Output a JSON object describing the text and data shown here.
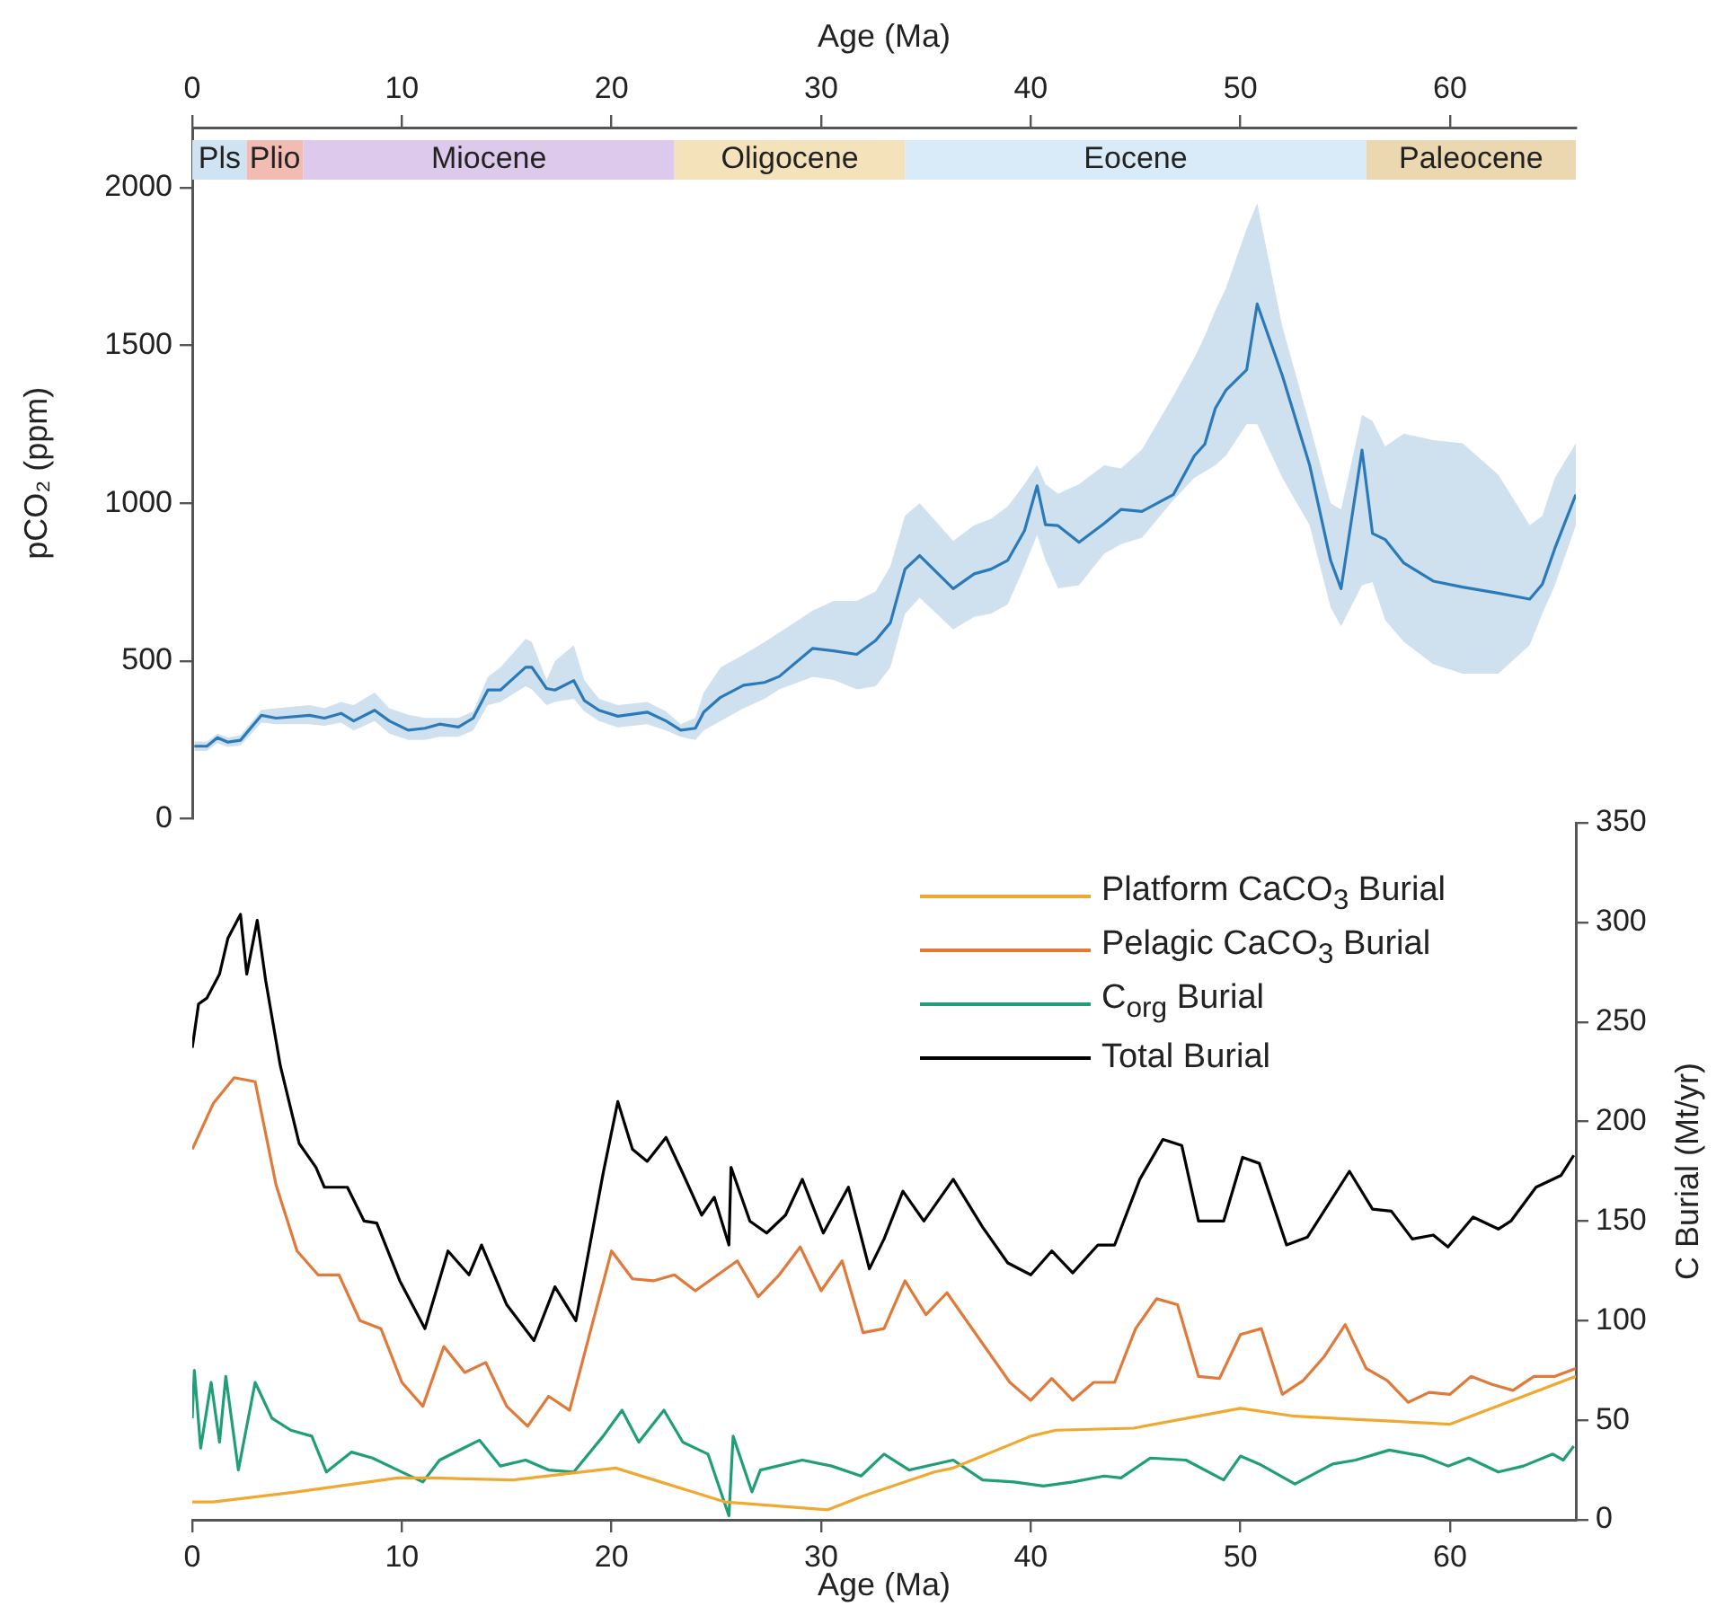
{
  "chart_data": [
    {
      "type": "line",
      "xlabel": "Age (Ma)",
      "ylabel": "pCO₂ (ppm)",
      "xlim": [
        0,
        66
      ],
      "xticks": [
        0,
        10,
        20,
        30,
        40,
        50,
        60
      ],
      "ylim": [
        0,
        2190
      ],
      "yticks": [
        0,
        500,
        1000,
        1500,
        2000
      ],
      "grid": false,
      "legend": false,
      "marker": "none",
      "line_style": "solid",
      "bands": [
        {
          "axis": "x",
          "from": 0,
          "to": 2.6,
          "label": "Pls",
          "color": "#cfe3f3"
        },
        {
          "axis": "x",
          "from": 2.6,
          "to": 5.3,
          "label": "Plio",
          "color": "#f3bcb3"
        },
        {
          "axis": "x",
          "from": 5.3,
          "to": 23,
          "label": "Miocene",
          "color": "#dcc9ec"
        },
        {
          "axis": "x",
          "from": 23,
          "to": 34,
          "label": "Oligocene",
          "color": "#f4e2bb"
        },
        {
          "axis": "x",
          "from": 34,
          "to": 56,
          "label": "Eocene",
          "color": "#d9ebf8"
        },
        {
          "axis": "x",
          "from": 56,
          "to": 66,
          "label": "Paleocene",
          "color": "#ecd8b0"
        }
      ],
      "series": [
        {
          "color": "#2a7ab9",
          "x": [
            0.1,
            0.7,
            1.2,
            1.7,
            2.3,
            3.3,
            4.0,
            5.6,
            6.3,
            7.1,
            7.7,
            8.7,
            9.4,
            10.3,
            11.1,
            11.8,
            12.7,
            13.4,
            14.1,
            14.7,
            15.9,
            16.2,
            16.9,
            17.3,
            18.2,
            18.7,
            19.4,
            20.3,
            21.7,
            22.6,
            23.3,
            24.0,
            24.4,
            25.2,
            26.3,
            27.3,
            28.0,
            29.6,
            30.6,
            31.7,
            32.6,
            33.3,
            34.0,
            34.7,
            36.3,
            37.3,
            38.1,
            38.9,
            39.7,
            40.3,
            40.7,
            41.3,
            42.3,
            43.5,
            44.3,
            45.3,
            46.8,
            47.8,
            48.3,
            48.8,
            49.3,
            50.3,
            50.8,
            52.0,
            53.3,
            54.3,
            54.8,
            55.8,
            56.3,
            56.9,
            57.8,
            59.2,
            60.6,
            62.3,
            63.8,
            64.4,
            65.0,
            66.0
          ],
          "values": [
            230,
            230,
            257,
            243,
            249,
            328,
            319,
            328,
            319,
            334,
            310,
            344,
            310,
            281,
            287,
            300,
            291,
            319,
            408,
            408,
            480,
            480,
            413,
            408,
            438,
            375,
            344,
            325,
            338,
            310,
            281,
            287,
            338,
            385,
            423,
            432,
            451,
            540,
            532,
            521,
            565,
            621,
            791,
            834,
            729,
            776,
            791,
            819,
            913,
            1055,
            932,
            929,
            876,
            936,
            980,
            974,
            1027,
            1150,
            1187,
            1300,
            1357,
            1423,
            1631,
            1404,
            1121,
            819,
            729,
            1168,
            904,
            885,
            810,
            753,
            734,
            715,
            696,
            743,
            857,
            1027
          ],
          "lower": [
            215,
            215,
            240,
            228,
            232,
            305,
            300,
            300,
            295,
            305,
            280,
            310,
            270,
            250,
            250,
            260,
            260,
            280,
            360,
            370,
            420,
            410,
            360,
            370,
            380,
            340,
            310,
            290,
            300,
            280,
            260,
            250,
            280,
            310,
            350,
            380,
            410,
            450,
            440,
            410,
            420,
            480,
            650,
            700,
            600,
            640,
            650,
            680,
            800,
            900,
            820,
            730,
            740,
            840,
            870,
            890,
            1010,
            1080,
            1100,
            1120,
            1150,
            1250,
            1250,
            1080,
            930,
            670,
            610,
            740,
            750,
            630,
            560,
            490,
            460,
            460,
            550,
            650,
            740,
            930
          ],
          "upper": [
            245,
            245,
            270,
            258,
            265,
            345,
            350,
            360,
            350,
            370,
            360,
            400,
            350,
            330,
            320,
            320,
            320,
            340,
            450,
            480,
            570,
            560,
            440,
            500,
            550,
            440,
            380,
            360,
            370,
            340,
            300,
            320,
            400,
            480,
            520,
            560,
            590,
            660,
            690,
            690,
            720,
            800,
            960,
            1000,
            880,
            930,
            950,
            990,
            1060,
            1120,
            1060,
            1030,
            1060,
            1120,
            1110,
            1170,
            1340,
            1460,
            1530,
            1610,
            1680,
            1870,
            1950,
            1560,
            1250,
            1000,
            980,
            1280,
            1260,
            1180,
            1220,
            1200,
            1190,
            1090,
            930,
            960,
            1080,
            1190
          ]
        }
      ]
    },
    {
      "type": "line",
      "xlabel": "Age (Ma)",
      "ylabel": "C Burial (Mt/yr)",
      "xlim": [
        0,
        66
      ],
      "xticks": [
        0,
        10,
        20,
        30,
        40,
        50,
        60
      ],
      "ylim": [
        0,
        350
      ],
      "yticks": [
        0,
        50,
        100,
        150,
        200,
        250,
        300,
        350
      ],
      "grid": false,
      "legend": "top right",
      "marker": "none",
      "line_style": "solid",
      "series": [
        {
          "name": "Platform CaCO$_{3}$ Burial",
          "color": "#f0a830",
          "x": [
            0,
            1,
            5,
            9.8,
            11.6,
            15.3,
            20.2,
            25.4,
            30.3,
            32,
            35.4,
            36.3,
            40,
            41.2,
            44.9,
            50,
            52.6,
            60,
            66
          ],
          "values": [
            9,
            9,
            14,
            21,
            21,
            20,
            26,
            9,
            5,
            12,
            24,
            26,
            42,
            45,
            46,
            56,
            52,
            48,
            72
          ]
        },
        {
          "name": "Pelagic CaCO$_{3}$ Burial",
          "color": "#e07a3a",
          "x": [
            0,
            1,
            2,
            3,
            4,
            5,
            6,
            7,
            8,
            9,
            10,
            11,
            12,
            13,
            14,
            15,
            16,
            17,
            18,
            20,
            21,
            22,
            23,
            24,
            26,
            27,
            28,
            29,
            30,
            31,
            32,
            33,
            34,
            35,
            36,
            38,
            39,
            40,
            41,
            42,
            43,
            44,
            45,
            46,
            47,
            48,
            49,
            50,
            51,
            52,
            53,
            54,
            55,
            56,
            57,
            58,
            59,
            60,
            61,
            62,
            63,
            64,
            65,
            66
          ],
          "values": [
            186,
            209,
            222,
            220,
            168,
            135,
            123,
            123,
            100,
            96,
            69,
            57,
            87,
            74,
            79,
            57,
            47,
            62,
            55,
            135,
            121,
            120,
            123,
            115,
            130,
            112,
            123,
            137,
            115,
            130,
            94,
            96,
            120,
            103,
            114,
            84,
            69,
            60,
            71,
            60,
            69,
            69,
            96,
            111,
            108,
            72,
            71,
            93,
            96,
            63,
            70,
            82,
            98,
            76,
            70,
            59,
            64,
            63,
            72,
            68,
            65,
            72,
            72,
            76
          ]
        },
        {
          "name": "C$_{org}$ Burial",
          "color": "#1f9e78",
          "x": [
            0,
            0.1,
            0.4,
            0.9,
            1.3,
            1.6,
            2.2,
            3.0,
            3.8,
            4.7,
            5.7,
            6.4,
            7.6,
            8.6,
            9.8,
            11.0,
            11.8,
            13.7,
            14.7,
            15.9,
            17.0,
            18.2,
            19.6,
            20.5,
            21.3,
            22.5,
            23.4,
            24.6,
            25.6,
            25.8,
            26.7,
            27.1,
            29.1,
            30.5,
            31.9,
            33.0,
            34.2,
            36.3,
            37.7,
            39.2,
            40.6,
            42.0,
            43.5,
            44.3,
            45.7,
            47.4,
            49.2,
            50.0,
            50.9,
            52.6,
            54.4,
            55.5,
            57.1,
            58.7,
            59.9,
            60.9,
            62.3,
            63.5,
            64.9,
            65.4,
            65.9
          ],
          "values": [
            51,
            75,
            36,
            69,
            39,
            72,
            25,
            69,
            51,
            45,
            42,
            24,
            34,
            31,
            25,
            19,
            30,
            40,
            27,
            30,
            25,
            24,
            42,
            55,
            39,
            55,
            39,
            33,
            2,
            42,
            14,
            25,
            30,
            27,
            22,
            33,
            25,
            30,
            20,
            19,
            17,
            19,
            22,
            21,
            31,
            30,
            20,
            32,
            28,
            18,
            28,
            30,
            35,
            32,
            27,
            31,
            24,
            27,
            33,
            30,
            37
          ]
        },
        {
          "name": "Total Burial",
          "color": "#000000",
          "x": [
            0,
            0.3,
            0.7,
            1.3,
            1.7,
            2.3,
            2.6,
            3.1,
            3.5,
            4.2,
            5.1,
            5.9,
            6.3,
            7.4,
            8.2,
            8.8,
            9.9,
            11.1,
            12.2,
            13.2,
            13.8,
            15.0,
            16.3,
            17.3,
            18.3,
            19.6,
            20.3,
            21.0,
            21.7,
            22.6,
            23.4,
            24.3,
            24.9,
            25.6,
            25.7,
            26.6,
            27.4,
            28.3,
            29.1,
            30.1,
            31.3,
            32.3,
            33.0,
            33.9,
            34.9,
            36.3,
            37.7,
            38.9,
            40.0,
            41.0,
            42.0,
            43.2,
            44.0,
            45.2,
            46.3,
            47.2,
            48.0,
            49.2,
            50.1,
            50.9,
            52.2,
            53.2,
            55.2,
            56.3,
            57.2,
            58.2,
            59.2,
            59.9,
            61.1,
            62.3,
            62.9,
            64.1,
            65.3,
            65.9
          ],
          "values": [
            237,
            259,
            262,
            274,
            292,
            304,
            274,
            301,
            271,
            228,
            189,
            177,
            167,
            167,
            150,
            149,
            120,
            96,
            135,
            123,
            138,
            108,
            90,
            117,
            100,
            174,
            210,
            186,
            180,
            192,
            174,
            153,
            162,
            138,
            177,
            150,
            144,
            153,
            171,
            144,
            167,
            126,
            141,
            165,
            150,
            171,
            147,
            129,
            123,
            135,
            124,
            138,
            138,
            171,
            191,
            188,
            150,
            150,
            182,
            179,
            138,
            142,
            175,
            156,
            155,
            141,
            143,
            137,
            152,
            146,
            150,
            167,
            173,
            183
          ]
        }
      ]
    }
  ]
}
